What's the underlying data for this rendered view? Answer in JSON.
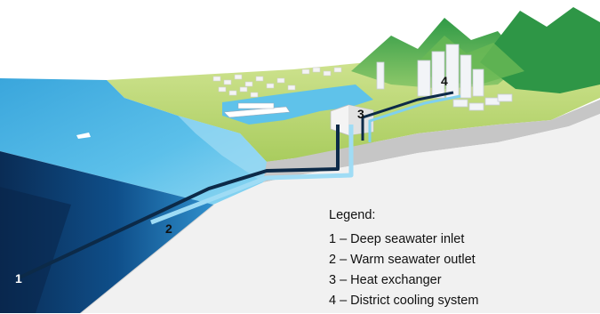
{
  "markers": {
    "m1": "1",
    "m2": "2",
    "m3": "3",
    "m4": "4"
  },
  "legend": {
    "title": "Legend:",
    "items": [
      "1 – Deep seawater inlet",
      "2 – Warm seawater outlet",
      "3 – Heat exchanger",
      "4 – District cooling system"
    ]
  },
  "colors": {
    "deep_sea": "#0b3f73",
    "shallow_sea": "#7fd0ef",
    "land": "#b7d46a",
    "mountain": "#3da64c",
    "road": "#c9c9c9",
    "inlet_pipe": "#0c2a48",
    "outlet_pipe": "#9fdcf5"
  }
}
